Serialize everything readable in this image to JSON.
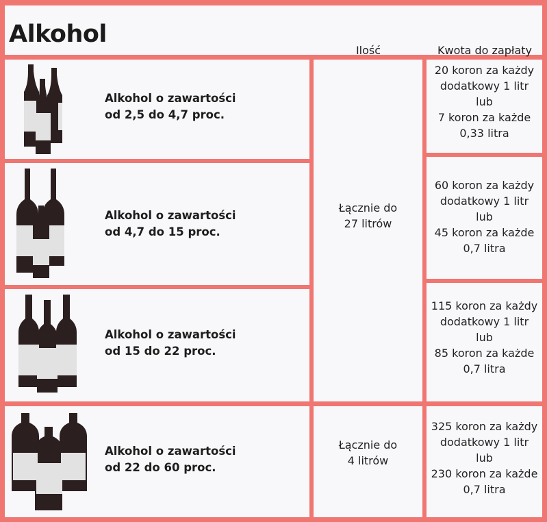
{
  "title": "Alkohol",
  "headers": {
    "quantity": "Ilość",
    "amount": "Kwota do zapłaty"
  },
  "colors": {
    "border": "#f07672",
    "cell": "#f8f8fb",
    "bottle": "#2b1f1f",
    "label": "#e2e2e2"
  },
  "rows": [
    {
      "category": [
        "Alkohol o zawartości",
        "od 2,5 do 4,7 proc."
      ],
      "icon": "beer-bottles-icon",
      "price": [
        "20 koron za każdy",
        "dodatkowy 1 litr",
        "lub",
        "7 koron za każde",
        "0,33 litra"
      ]
    },
    {
      "category": [
        "Alkohol o zawartości",
        "od 4,7 do 15 proc."
      ],
      "icon": "wine-bottles-icon",
      "price": [
        "60 koron za każdy",
        "dodatkowy 1 litr",
        "lub",
        "45 koron za każde",
        "0,7 litra"
      ]
    },
    {
      "category": [
        "Alkohol o zawartości",
        "od 15 do 22 proc."
      ],
      "icon": "liqueur-bottles-icon",
      "price": [
        "115 koron za każdy",
        "dodatkowy 1 litr",
        "lub",
        "85 koron za każde",
        "0,7 litra"
      ]
    },
    {
      "category": [
        "Alkohol o zawartości",
        "od 22 do 60 proc."
      ],
      "icon": "spirit-bottles-icon",
      "price": [
        "325 koron za każdy",
        "dodatkowy 1 litr",
        "lub",
        "230 koron za każde",
        "0,7 litra"
      ]
    }
  ],
  "quantities": [
    [
      "Łącznie do",
      "27 litrów"
    ],
    [
      "Łącznie do",
      "4 litrów"
    ]
  ]
}
